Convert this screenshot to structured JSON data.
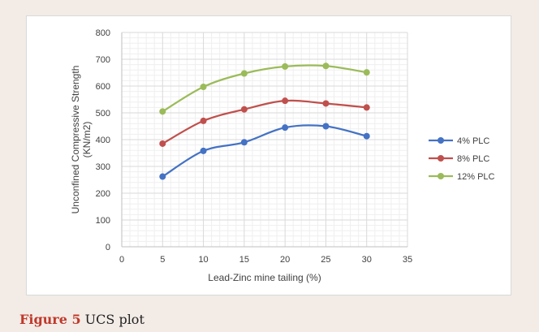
{
  "caption": {
    "label": "Figure 5",
    "text": "UCS plot"
  },
  "chart_data": {
    "type": "line",
    "title": "",
    "xlabel": "Lead-Zinc mine tailing (%)",
    "ylabel_line1": "Unconfined Compressive Strength",
    "ylabel_line2": "(KN/m2)",
    "xlim": [
      0,
      35
    ],
    "ylim": [
      0,
      800
    ],
    "xticks": [
      0,
      5,
      10,
      15,
      20,
      25,
      30,
      35
    ],
    "yticks": [
      0,
      100,
      200,
      300,
      400,
      500,
      600,
      700,
      800
    ],
    "x": [
      5,
      10,
      15,
      20,
      25,
      30
    ],
    "grid": true,
    "smooth": true,
    "legend_position": "right",
    "series": [
      {
        "name": "4% PLC",
        "color": "#4472c4",
        "values": [
          262,
          358,
          390,
          445,
          450,
          413
        ]
      },
      {
        "name": "8% PLC",
        "color": "#c0504d",
        "values": [
          385,
          470,
          513,
          545,
          535,
          520
        ]
      },
      {
        "name": "12% PLC",
        "color": "#9bbb59",
        "values": [
          505,
          597,
          647,
          673,
          675,
          651
        ]
      }
    ]
  }
}
